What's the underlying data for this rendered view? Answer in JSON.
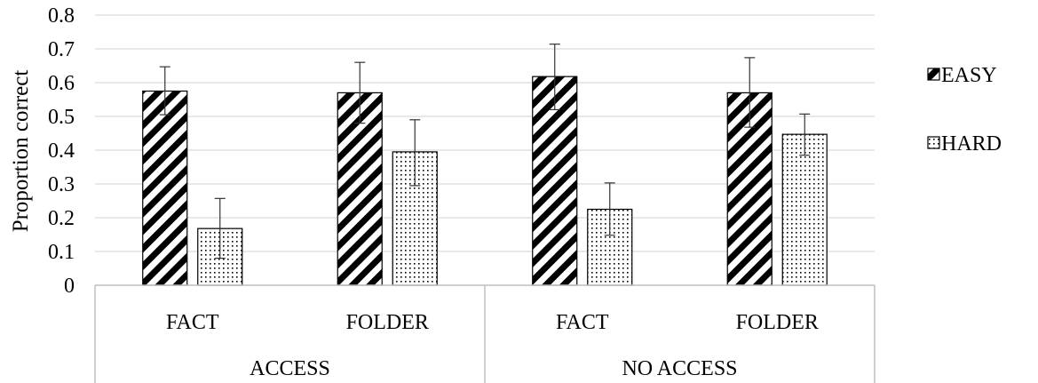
{
  "chart_data": {
    "type": "bar",
    "ylabel": "Proportion correct",
    "ylim": [
      0,
      0.8
    ],
    "yticks": [
      "0",
      "0.1",
      "0.2",
      "0.3",
      "0.4",
      "0.5",
      "0.6",
      "0.7",
      "0.8"
    ],
    "groups": [
      {
        "label": "ACCESS",
        "categories": [
          "FACT",
          "FOLDER"
        ]
      },
      {
        "label": "NO ACCESS",
        "categories": [
          "FACT",
          "FOLDER"
        ]
      }
    ],
    "categories": [
      "FACT",
      "FOLDER",
      "FACT",
      "FOLDER"
    ],
    "series": [
      {
        "name": "EASY",
        "pattern": "diagonal-stripes",
        "values": [
          0.575,
          0.57,
          0.618,
          0.57
        ],
        "error_low": [
          0.505,
          0.48,
          0.52,
          0.468
        ],
        "error_high": [
          0.647,
          0.66,
          0.714,
          0.674
        ]
      },
      {
        "name": "HARD",
        "pattern": "dots",
        "values": [
          0.168,
          0.395,
          0.225,
          0.447
        ],
        "error_low": [
          0.08,
          0.295,
          0.148,
          0.385
        ],
        "error_high": [
          0.257,
          0.49,
          0.303,
          0.507
        ]
      }
    ],
    "legend_position": "right",
    "grid": true,
    "colors": {
      "bar_edge": "#000000",
      "grid": "#d9d9d9",
      "error_bar": "#333333"
    }
  }
}
